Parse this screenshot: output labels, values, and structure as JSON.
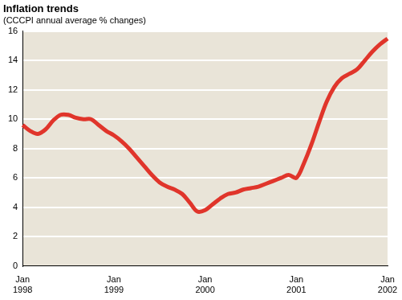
{
  "chart_data": {
    "type": "line",
    "title": "Inflation trends",
    "subtitle": "(CCCPI annual average % changes)",
    "categories": [
      "Jan 1998",
      null,
      null,
      null,
      null,
      null,
      null,
      null,
      null,
      null,
      null,
      null,
      "Jan 1999",
      null,
      null,
      null,
      null,
      null,
      null,
      null,
      null,
      null,
      null,
      null,
      "Jan 2000",
      null,
      null,
      null,
      null,
      null,
      null,
      null,
      null,
      null,
      null,
      null,
      "Jan 2001",
      null,
      null,
      null,
      null,
      null,
      null,
      null,
      null,
      null,
      null,
      null,
      "Jan 2002"
    ],
    "values": [
      9.6,
      9.2,
      9.0,
      9.3,
      9.9,
      10.3,
      10.3,
      10.1,
      10.0,
      10.0,
      9.6,
      9.2,
      8.9,
      8.5,
      8.0,
      7.4,
      6.8,
      6.2,
      5.7,
      5.4,
      5.2,
      4.9,
      4.3,
      3.7,
      3.8,
      4.2,
      4.6,
      4.9,
      5.0,
      5.2,
      5.3,
      5.4,
      5.6,
      5.8,
      6.0,
      6.2,
      6.0,
      7.0,
      8.3,
      9.8,
      11.2,
      12.2,
      12.8,
      13.1,
      13.4,
      14.0,
      14.6,
      15.1,
      15.5
    ],
    "color": "#e0352b",
    "ylim": [
      0,
      16
    ],
    "yticks": [
      0,
      2,
      4,
      6,
      8,
      10,
      12,
      14,
      16
    ],
    "grid": true
  }
}
